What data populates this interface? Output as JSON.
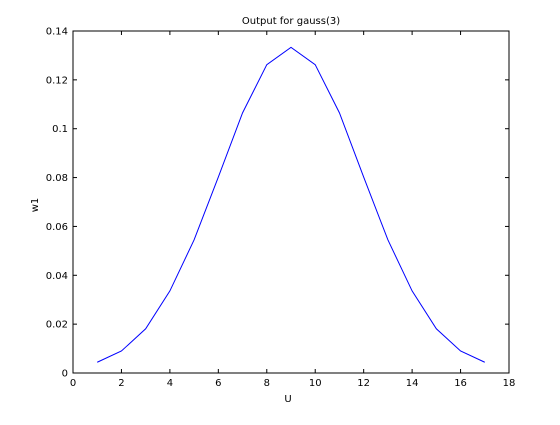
{
  "chart_data": {
    "type": "line",
    "title": "Output for gauss(3)",
    "xlabel": "U",
    "ylabel": "w1",
    "xlim": [
      0,
      18
    ],
    "ylim": [
      0,
      0.14
    ],
    "xticks": [
      0,
      2,
      4,
      6,
      8,
      10,
      12,
      14,
      16,
      18
    ],
    "yticks": [
      0,
      0.02,
      0.04,
      0.06,
      0.08,
      0.1,
      0.12,
      0.14
    ],
    "xtick_labels": [
      "0",
      "2",
      "4",
      "6",
      "8",
      "10",
      "12",
      "14",
      "16",
      "18"
    ],
    "ytick_labels": [
      "0",
      "0.02",
      "0.04",
      "0.06",
      "0.08",
      "0.1",
      "0.12",
      "0.14"
    ],
    "grid": false,
    "series": [
      {
        "name": "w1",
        "color": "#0000ff",
        "x": [
          1,
          2,
          3,
          4,
          5,
          6,
          7,
          8,
          9,
          10,
          11,
          12,
          13,
          14,
          15,
          16,
          17
        ],
        "y": [
          0.0044,
          0.009,
          0.0181,
          0.0336,
          0.0545,
          0.0802,
          0.1065,
          0.1262,
          0.1333,
          0.1262,
          0.1065,
          0.0802,
          0.0545,
          0.0336,
          0.0181,
          0.009,
          0.0044
        ]
      }
    ]
  }
}
